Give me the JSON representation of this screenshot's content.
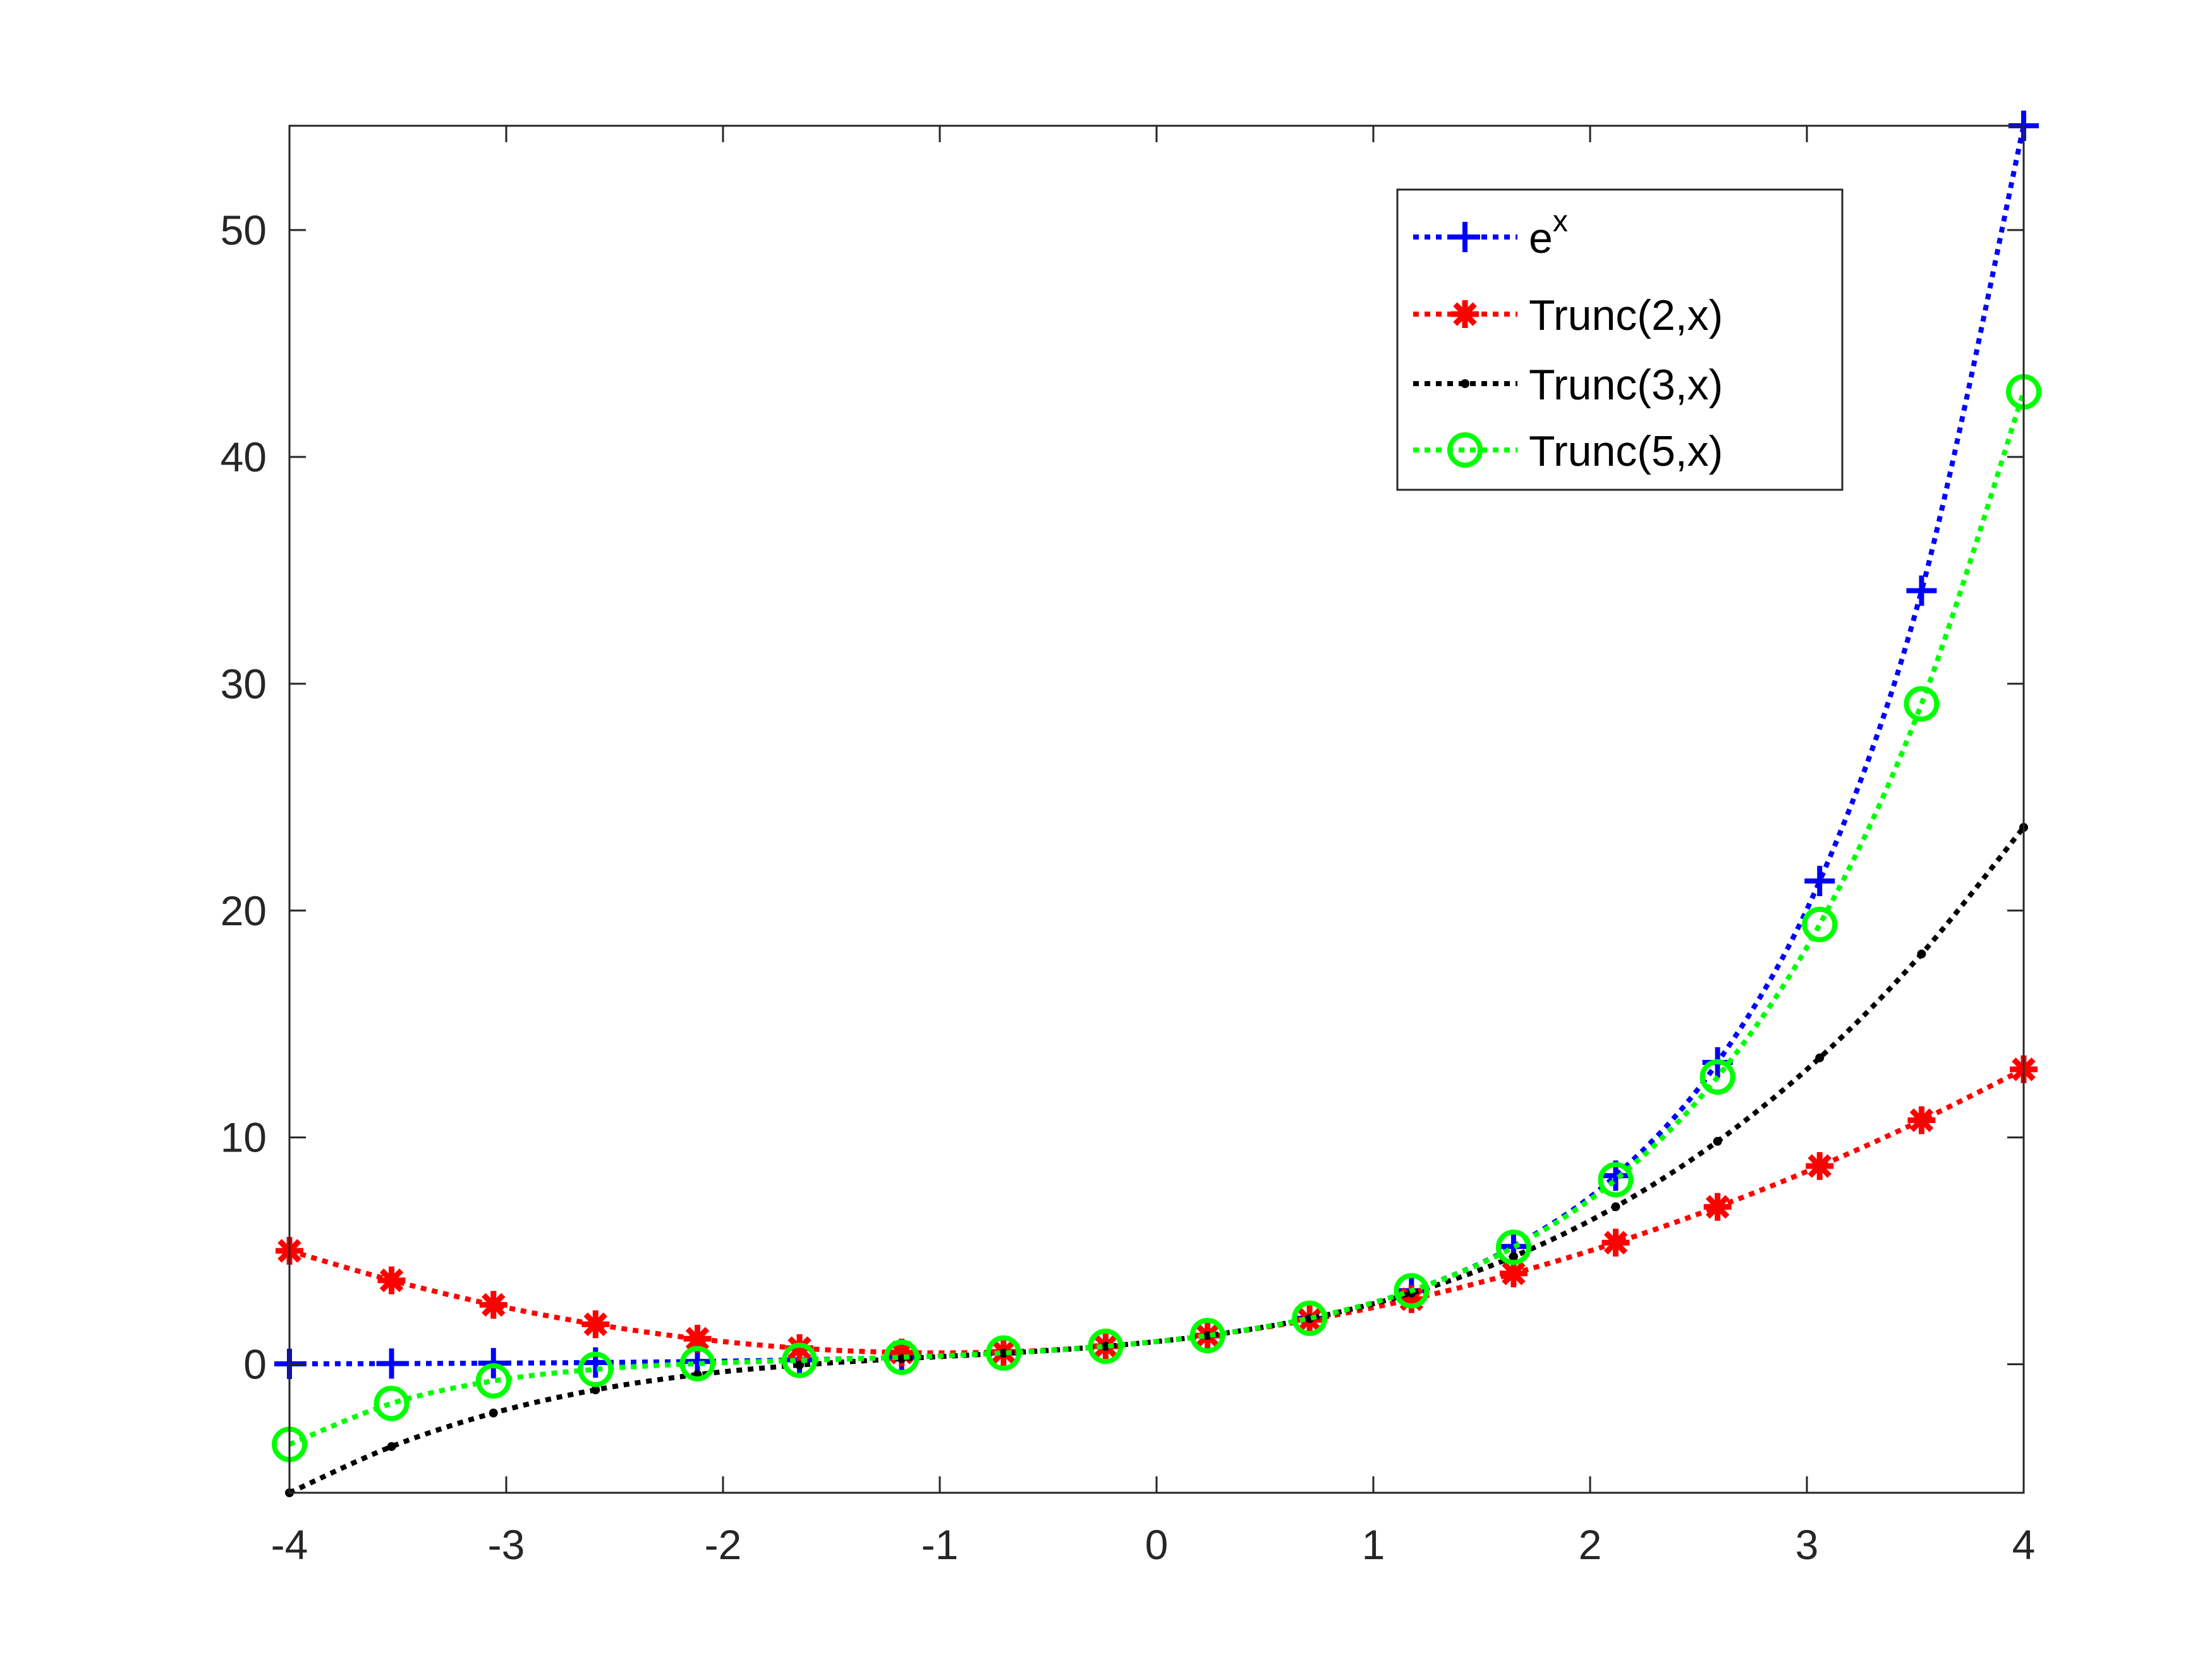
{
  "chart_data": {
    "type": "line",
    "title": "",
    "xlabel": "",
    "ylabel": "",
    "xlim": [
      -4,
      4
    ],
    "ylim": [
      -5.667,
      54.598
    ],
    "xticks": [
      "-4",
      "-3",
      "-2",
      "-1",
      "0",
      "1",
      "2",
      "3",
      "4"
    ],
    "yticks": [
      "0",
      "10",
      "20",
      "30",
      "40",
      "50"
    ],
    "grid": false,
    "box": true,
    "legend_position": "top-right",
    "line_style": "dotted",
    "x": [
      -4,
      -3.529,
      -3.059,
      -2.588,
      -2.118,
      -1.647,
      -1.176,
      -0.706,
      -0.235,
      0.235,
      0.706,
      1.176,
      1.647,
      2.118,
      2.588,
      3.059,
      3.529,
      4
    ],
    "series": [
      {
        "name": "e",
        "name_superscript": "x",
        "color": "#0000ff",
        "marker": "plus",
        "values": [
          0.018,
          0.029,
          0.047,
          0.075,
          0.12,
          0.193,
          0.308,
          0.494,
          0.79,
          1.265,
          2.026,
          3.243,
          5.192,
          8.311,
          13.306,
          21.302,
          34.101,
          54.598
        ]
      },
      {
        "name": "Trunc(2,x)",
        "color": "#ff0000",
        "marker": "asterisk",
        "values": [
          5.0,
          3.699,
          2.619,
          1.761,
          1.124,
          0.709,
          0.516,
          0.543,
          0.792,
          1.263,
          1.955,
          2.869,
          4.003,
          5.36,
          6.937,
          8.737,
          10.758,
          13.0
        ]
      },
      {
        "name": "Trunc(3,x)",
        "color": "#000000",
        "marker": "point",
        "values": [
          -5.667,
          -3.629,
          -2.151,
          -1.129,
          -0.459,
          -0.036,
          0.245,
          0.484,
          0.79,
          1.265,
          2.014,
          3.14,
          4.748,
          6.943,
          9.827,
          13.507,
          18.086,
          23.667
        ]
      },
      {
        "name": "Trunc(5,x)",
        "color": "#00ff00",
        "marker": "circle",
        "values": [
          -3.533,
          -1.728,
          -0.734,
          -0.227,
          0.024,
          0.17,
          0.306,
          0.493,
          0.79,
          1.265,
          2.026,
          3.239,
          5.156,
          8.136,
          12.665,
          19.386,
          29.115,
          42.867
        ]
      }
    ]
  }
}
